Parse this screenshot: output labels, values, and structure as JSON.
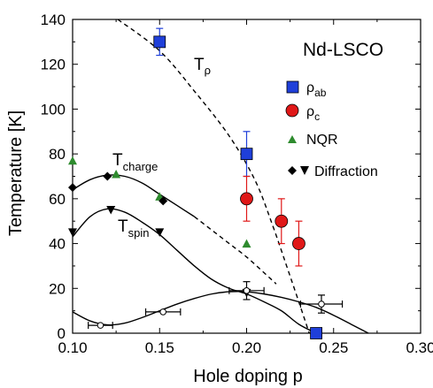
{
  "chart_data": {
    "type": "scatter",
    "title": "",
    "xlabel": "Hole doping p",
    "ylabel": "Temperature [K]",
    "xlim": [
      0.1,
      0.3
    ],
    "ylim": [
      0,
      140
    ],
    "x_ticks": [
      "0.10",
      "0.15",
      "0.20",
      "0.25",
      "0.30"
    ],
    "y_ticks": [
      "0",
      "20",
      "40",
      "60",
      "80",
      "100",
      "120",
      "140"
    ],
    "legend": {
      "title": "Nd-LSCO",
      "position": "top-right",
      "entries": [
        {
          "label_main": "ρ",
          "label_sub": "ab",
          "marker": "square",
          "color": "#1f3fd9"
        },
        {
          "label_main": "ρ",
          "label_sub": "c",
          "marker": "circle",
          "color": "#e01818"
        },
        {
          "label_main": "NQR",
          "label_sub": "",
          "marker": "triangle-up",
          "color": "#2e8b2e"
        },
        {
          "label_main": "Diffraction",
          "label_sub": "",
          "marker": "diamond+triangle-down",
          "color": "#000000"
        }
      ]
    },
    "curve_labels": [
      {
        "main": "T",
        "sub": "ρ"
      },
      {
        "main": "T",
        "sub": "charge"
      },
      {
        "main": "T",
        "sub": "spin"
      }
    ],
    "series": [
      {
        "name": "ρab",
        "marker": "square",
        "color": "#1f3fd9",
        "points": [
          {
            "x": 0.15,
            "y": 130,
            "yerr": 6
          },
          {
            "x": 0.2,
            "y": 80,
            "yerr": 10
          },
          {
            "x": 0.24,
            "y": 0,
            "yerr": 0
          }
        ]
      },
      {
        "name": "ρc",
        "marker": "circle",
        "color": "#e01818",
        "points": [
          {
            "x": 0.2,
            "y": 60,
            "yerr": 10
          },
          {
            "x": 0.22,
            "y": 50,
            "yerr": 10
          },
          {
            "x": 0.23,
            "y": 40,
            "yerr": 10
          }
        ]
      },
      {
        "name": "NQR",
        "marker": "triangle-up",
        "color": "#2e8b2e",
        "points": [
          {
            "x": 0.1,
            "y": 77
          },
          {
            "x": 0.125,
            "y": 71
          },
          {
            "x": 0.15,
            "y": 61
          },
          {
            "x": 0.2,
            "y": 40
          }
        ]
      },
      {
        "name": "Diffraction (charge)",
        "marker": "diamond",
        "color": "#000000",
        "points": [
          {
            "x": 0.1,
            "y": 65
          },
          {
            "x": 0.12,
            "y": 70
          },
          {
            "x": 0.152,
            "y": 59
          }
        ]
      },
      {
        "name": "Diffraction (spin)",
        "marker": "triangle-down",
        "color": "#000000",
        "points": [
          {
            "x": 0.1,
            "y": 45
          },
          {
            "x": 0.122,
            "y": 55
          },
          {
            "x": 0.15,
            "y": 45
          },
          {
            "x": 0.2,
            "y": 18
          }
        ]
      },
      {
        "name": "open circles",
        "marker": "open-circle",
        "color": "#000000",
        "points": [
          {
            "x": 0.116,
            "y": 3.5,
            "xerr": 0.007
          },
          {
            "x": 0.152,
            "y": 9.5,
            "xerr": 0.01
          },
          {
            "x": 0.2,
            "y": 19,
            "xerr": 0.01,
            "yerr": 4
          },
          {
            "x": 0.243,
            "y": 13,
            "xerr": 0.012,
            "yerr": 4
          }
        ]
      }
    ],
    "guide_curves": [
      {
        "name": "T-rho",
        "style": "dashed",
        "points": [
          [
            0.126,
            140
          ],
          [
            0.15,
            126
          ],
          [
            0.17,
            108
          ],
          [
            0.19,
            88
          ],
          [
            0.205,
            68
          ],
          [
            0.215,
            48
          ],
          [
            0.223,
            30
          ],
          [
            0.23,
            14
          ],
          [
            0.236,
            0
          ]
        ]
      },
      {
        "name": "T-charge",
        "style": "solid",
        "points": [
          [
            0.1,
            64
          ],
          [
            0.11,
            68.5
          ],
          [
            0.12,
            70.5
          ],
          [
            0.13,
            70
          ],
          [
            0.14,
            67
          ],
          [
            0.15,
            62
          ],
          [
            0.16,
            57
          ],
          [
            0.17,
            52
          ]
        ]
      },
      {
        "name": "T-charge-extension",
        "style": "dashed",
        "points": [
          [
            0.17,
            52
          ],
          [
            0.18,
            46
          ],
          [
            0.19,
            40
          ],
          [
            0.2,
            34
          ],
          [
            0.21,
            27
          ],
          [
            0.217,
            22
          ]
        ]
      },
      {
        "name": "T-spin",
        "style": "solid",
        "points": [
          [
            0.1,
            43
          ],
          [
            0.11,
            52
          ],
          [
            0.12,
            55.5
          ],
          [
            0.13,
            54
          ],
          [
            0.14,
            49.5
          ],
          [
            0.15,
            44
          ],
          [
            0.16,
            37
          ],
          [
            0.17,
            30
          ],
          [
            0.18,
            24
          ],
          [
            0.19,
            20
          ],
          [
            0.2,
            17.5
          ],
          [
            0.21,
            14
          ],
          [
            0.22,
            10
          ],
          [
            0.23,
            4
          ],
          [
            0.24,
            0
          ]
        ]
      },
      {
        "name": "low-T dome",
        "style": "solid",
        "points": [
          [
            0.1,
            9.5
          ],
          [
            0.11,
            5.5
          ],
          [
            0.12,
            3.7
          ],
          [
            0.13,
            4.5
          ],
          [
            0.14,
            7
          ],
          [
            0.15,
            10
          ],
          [
            0.16,
            13
          ],
          [
            0.17,
            15.5
          ],
          [
            0.18,
            17.5
          ],
          [
            0.19,
            18.5
          ],
          [
            0.2,
            18.5
          ],
          [
            0.21,
            17.5
          ],
          [
            0.22,
            16
          ],
          [
            0.23,
            14
          ],
          [
            0.24,
            11.5
          ],
          [
            0.25,
            8
          ],
          [
            0.26,
            4
          ],
          [
            0.27,
            0
          ]
        ]
      }
    ]
  }
}
